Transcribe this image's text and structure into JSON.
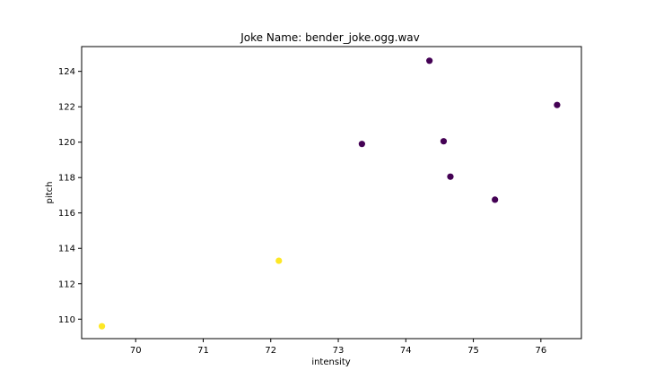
{
  "chart_data": {
    "type": "scatter",
    "title": "Joke Name: bender_joke.ogg.wav",
    "xlabel": "intensity",
    "ylabel": "pitch",
    "xlim": [
      69.2,
      76.6
    ],
    "ylim": [
      108.9,
      125.4
    ],
    "xticks": [
      70,
      71,
      72,
      73,
      74,
      75,
      76
    ],
    "yticks": [
      110,
      112,
      114,
      116,
      118,
      120,
      122,
      124
    ],
    "grid": false,
    "colors": {
      "class_0": "#440154",
      "class_1": "#fde725"
    },
    "points": [
      {
        "x": 69.5,
        "y": 109.6,
        "class": 1
      },
      {
        "x": 72.12,
        "y": 113.3,
        "class": 1
      },
      {
        "x": 73.35,
        "y": 119.9,
        "class": 0
      },
      {
        "x": 74.35,
        "y": 124.6,
        "class": 0
      },
      {
        "x": 74.56,
        "y": 120.05,
        "class": 0
      },
      {
        "x": 74.66,
        "y": 118.05,
        "class": 0
      },
      {
        "x": 75.32,
        "y": 116.75,
        "class": 0
      },
      {
        "x": 76.24,
        "y": 122.1,
        "class": 0
      }
    ]
  }
}
